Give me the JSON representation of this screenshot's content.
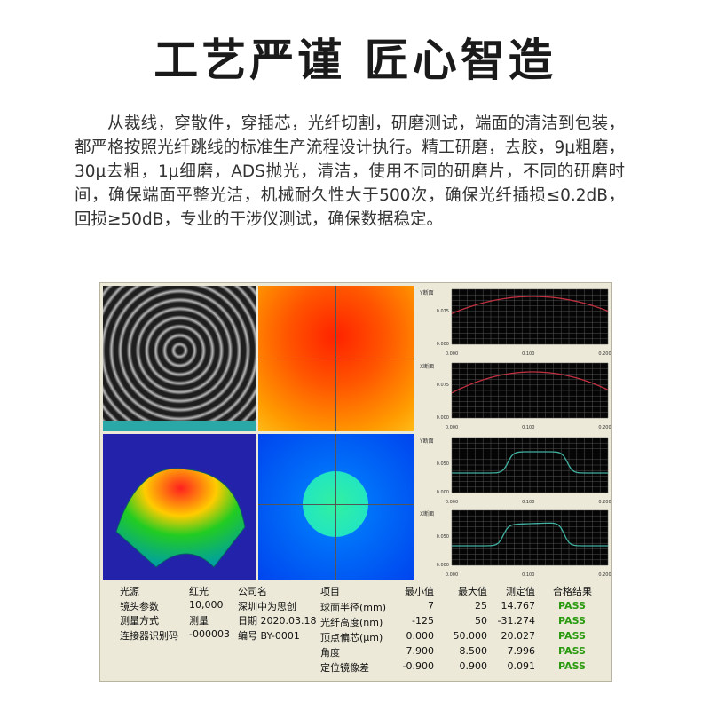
{
  "title": "工艺严谨 匠心智造",
  "paragraph": "从裁线，穿散件，穿插芯，光纤切割，研磨测试，端面的清洁到包装，都严格按照光纤跳线的标准生产流程设计执行。精工研磨，去胶，9μ粗磨，30μ去粗，1μ细磨，ADS抛光，清洁，使用不同的研磨片，不同的研磨时间，确保端面平整光洁，机械耐久性大于500次，确保光纤插损≤0.2dB，回损≥50dB，专业的干涉仪测试，确保数据稳定。",
  "charts": [
    {
      "label": "Y断面",
      "ytick": "0.075",
      "y0": "0.000",
      "xticks": [
        "0.000",
        "0.100",
        "0.200"
      ],
      "color": "#c03040"
    },
    {
      "label": "X断面",
      "ytick": "0.075",
      "y0": "0.000",
      "xticks": [
        "0.000",
        "0.100",
        "0.200"
      ],
      "color": "#c03040"
    },
    {
      "label": "Y断面",
      "ytick": "0.050",
      "y0": "0.000",
      "xticks": [
        "0.000",
        "0.100",
        "0.200"
      ],
      "color": "#40b0a0"
    },
    {
      "label": "X断面",
      "ytick": "0.050",
      "y0": "0.000",
      "xticks": [
        "0.000",
        "0.100",
        "0.200"
      ],
      "color": "#40b0a0"
    }
  ],
  "info": {
    "rows": [
      [
        "光源",
        "红光",
        "公司名"
      ],
      [
        "镜头参数",
        "10,000",
        "深圳中为思创"
      ],
      [
        "测量方式",
        "测量",
        "日期 2020.03.18"
      ],
      [
        "连接器识别码",
        "-000003",
        "编号 BY-0001"
      ]
    ]
  },
  "results": {
    "headers": [
      "项目",
      "最小值",
      "最大值",
      "测定值",
      "合格结果"
    ],
    "rows": [
      [
        "球面半径(mm)",
        "7",
        "25",
        "14.767",
        "PASS"
      ],
      [
        "光纤高度(nm)",
        "-125",
        "50",
        "-31.274",
        "PASS"
      ],
      [
        "顶点偏芯(μm)",
        "0.000",
        "50.000",
        "20.027",
        "PASS"
      ],
      [
        "角度",
        "7.900",
        "8.500",
        "7.996",
        "PASS"
      ],
      [
        "定位镜像差",
        "-0.900",
        "0.900",
        "0.091",
        "PASS"
      ]
    ]
  }
}
